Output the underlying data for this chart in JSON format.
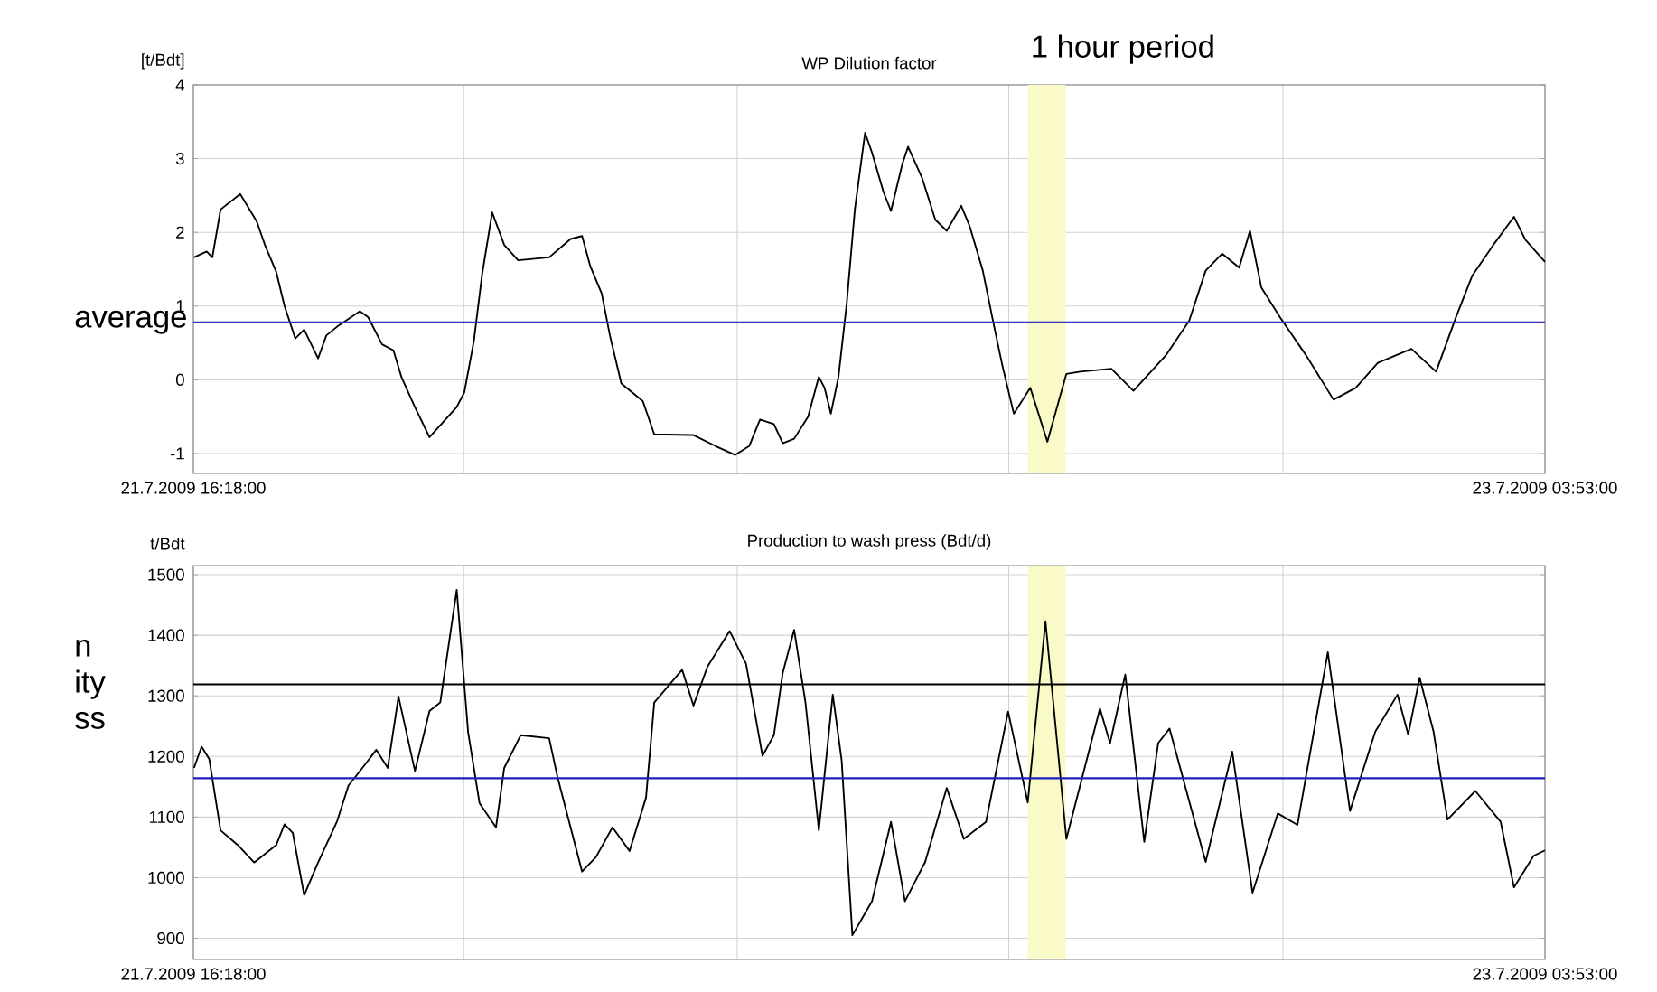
{
  "chart_data": [
    {
      "type": "line",
      "title": "WP Dilution factor",
      "ylabel": "[t/Bdt]",
      "color": "#000000",
      "x": [
        "2009-07-21T16:19",
        "2009-07-21T16:39",
        "2009-07-21T16:48",
        "2009-07-21T17:01",
        "2009-07-21T17:32",
        "2009-07-21T17:58",
        "2009-07-21T18:11",
        "2009-07-21T18:29",
        "2009-07-21T18:42",
        "2009-07-21T18:59",
        "2009-07-21T19:13",
        "2009-07-21T19:35",
        "2009-07-21T19:48",
        "2009-07-21T20:05",
        "2009-07-21T20:41",
        "2009-07-21T20:54",
        "2009-07-21T21:16",
        "2009-07-21T21:34",
        "2009-07-21T21:47",
        "2009-07-21T22:08",
        "2009-07-21T22:31",
        "2009-07-21T22:52",
        "2009-07-21T23:14",
        "2009-07-21T23:26",
        "2009-07-21T23:41",
        "2009-07-21T23:54",
        "2009-07-22T00:10",
        "2009-07-22T00:29",
        "2009-07-22T00:51",
        "2009-07-22T01:40",
        "2009-07-22T02:14",
        "2009-07-22T02:32",
        "2009-07-22T02:45",
        "2009-07-22T03:03",
        "2009-07-22T03:16",
        "2009-07-22T03:34",
        "2009-07-22T04:08",
        "2009-07-22T04:26",
        "2009-07-22T05:28",
        "2009-07-22T06:03",
        "2009-07-22T06:34",
        "2009-07-22T06:56",
        "2009-07-22T07:13",
        "2009-07-22T07:35",
        "2009-07-22T07:49",
        "2009-07-22T08:07",
        "2009-07-22T08:29",
        "2009-07-22T08:46",
        "2009-07-22T08:55",
        "2009-07-22T09:05",
        "2009-07-22T09:17",
        "2009-07-22T09:30",
        "2009-07-22T09:43",
        "2009-07-22T09:59",
        "2009-07-22T10:10",
        "2009-07-22T10:28",
        "2009-07-22T10:40",
        "2009-07-22T10:58",
        "2009-07-22T11:07",
        "2009-07-22T11:29",
        "2009-07-22T11:50",
        "2009-07-22T12:08",
        "2009-07-22T12:31",
        "2009-07-22T12:44",
        "2009-07-22T13:05",
        "2009-07-22T13:23",
        "2009-07-22T13:36",
        "2009-07-22T13:54",
        "2009-07-22T14:20",
        "2009-07-22T14:47",
        "2009-07-22T15:17",
        "2009-07-22T15:39",
        "2009-07-22T16:28",
        "2009-07-22T17:03",
        "2009-07-22T17:55",
        "2009-07-22T18:31",
        "2009-07-22T18:57",
        "2009-07-22T19:23",
        "2009-07-22T19:50",
        "2009-07-22T20:07",
        "2009-07-22T20:25",
        "2009-07-22T20:55",
        "2009-07-22T21:35",
        "2009-07-22T22:19",
        "2009-07-22T22:54",
        "2009-07-22T23:29",
        "2009-07-23T00:22",
        "2009-07-23T01:01",
        "2009-07-23T01:32",
        "2009-07-23T01:58",
        "2009-07-23T02:34",
        "2009-07-23T03:04",
        "2009-07-23T03:22",
        "2009-07-23T03:53"
      ],
      "values": [
        1.66,
        1.74,
        1.66,
        2.31,
        2.52,
        2.15,
        1.83,
        1.46,
        1.0,
        0.56,
        0.68,
        0.29,
        0.6,
        0.72,
        0.93,
        0.85,
        0.48,
        0.4,
        0.03,
        -0.37,
        -0.78,
        -0.58,
        -0.37,
        -0.17,
        0.52,
        1.42,
        2.27,
        1.83,
        1.62,
        1.66,
        1.91,
        1.95,
        1.54,
        1.17,
        0.6,
        -0.05,
        -0.29,
        -0.74,
        -0.75,
        -0.9,
        -1.02,
        -0.9,
        -0.54,
        -0.6,
        -0.86,
        -0.8,
        -0.5,
        0.04,
        -0.11,
        -0.46,
        0.04,
        1.03,
        2.32,
        3.35,
        3.08,
        2.55,
        2.29,
        2.93,
        3.16,
        2.74,
        2.17,
        2.02,
        2.36,
        2.09,
        1.48,
        0.72,
        0.19,
        -0.46,
        -0.11,
        -0.84,
        0.08,
        0.11,
        0.15,
        -0.15,
        0.34,
        0.8,
        1.48,
        1.71,
        1.52,
        2.02,
        1.25,
        0.84,
        0.34,
        -0.27,
        -0.11,
        0.23,
        0.42,
        0.11,
        0.84,
        1.41,
        1.86,
        2.21,
        1.9,
        1.6
      ],
      "xlim": [
        "2009-07-21T16:18",
        "2009-07-23T03:53"
      ],
      "xticks": [
        {
          "value": "2009-07-21T16:18",
          "label": "21.7.2009 16:18:00"
        },
        {
          "value": "2009-07-21T23:25",
          "label": null
        },
        {
          "value": "2009-07-22T06:37",
          "label": null
        },
        {
          "value": "2009-07-22T13:46",
          "label": null
        },
        {
          "value": "2009-07-22T20:59",
          "label": null
        },
        {
          "value": "2009-07-23T03:53",
          "label": "23.7.2009 03:53:00"
        }
      ],
      "ylim": [
        -1.27,
        4
      ],
      "yticks": [
        -1,
        0,
        1,
        2,
        3,
        4
      ],
      "grid": true,
      "ref_lines": [
        {
          "axis": "y",
          "value": 0.78,
          "label": "average",
          "color": "#3333bb"
        }
      ],
      "bands": [
        {
          "axis": "x",
          "from": "2009-07-22T14:16",
          "to": "2009-07-22T15:16",
          "label": "1 hour period",
          "color": "#fafac8"
        }
      ]
    },
    {
      "type": "line",
      "title": "Production to wash press (Bdt/d)",
      "ylabel": "t/Bdt",
      "color": "#000000",
      "x": [
        "2009-07-21T16:19",
        "2009-07-21T16:31",
        "2009-07-21T16:43",
        "2009-07-21T17:01",
        "2009-07-21T17:28",
        "2009-07-21T17:54",
        "2009-07-21T18:29",
        "2009-07-21T18:42",
        "2009-07-21T18:55",
        "2009-07-21T19:13",
        "2009-07-21T19:35",
        "2009-07-21T20:05",
        "2009-07-21T20:23",
        "2009-07-21T20:45",
        "2009-07-21T21:07",
        "2009-07-21T21:25",
        "2009-07-21T21:42",
        "2009-07-21T22:08",
        "2009-07-21T22:31",
        "2009-07-21T22:48",
        "2009-07-21T23:14",
        "2009-07-21T23:32",
        "2009-07-21T23:50",
        "2009-07-22T00:16",
        "2009-07-22T00:29",
        "2009-07-22T00:55",
        "2009-07-22T01:40",
        "2009-07-22T01:53",
        "2009-07-22T02:32",
        "2009-07-22T02:54",
        "2009-07-22T03:20",
        "2009-07-22T03:47",
        "2009-07-22T04:13",
        "2009-07-22T04:26",
        "2009-07-22T05:10",
        "2009-07-22T05:28",
        "2009-07-22T05:50",
        "2009-07-22T06:25",
        "2009-07-22T06:51",
        "2009-07-22T07:17",
        "2009-07-22T07:35",
        "2009-07-22T07:49",
        "2009-07-22T08:07",
        "2009-07-22T08:25",
        "2009-07-22T08:46",
        "2009-07-22T09:08",
        "2009-07-22T09:22",
        "2009-07-22T09:39",
        "2009-07-22T10:10",
        "2009-07-22T10:40",
        "2009-07-22T11:02",
        "2009-07-22T11:34",
        "2009-07-22T12:08",
        "2009-07-22T12:35",
        "2009-07-22T13:10",
        "2009-07-22T13:45",
        "2009-07-22T14:16",
        "2009-07-22T14:44",
        "2009-07-22T15:17",
        "2009-07-22T16:10",
        "2009-07-22T16:26",
        "2009-07-22T16:50",
        "2009-07-22T17:20",
        "2009-07-22T17:42",
        "2009-07-22T18:00",
        "2009-07-22T18:57",
        "2009-07-22T19:39",
        "2009-07-22T20:11",
        "2009-07-22T20:51",
        "2009-07-22T21:22",
        "2009-07-22T22:10",
        "2009-07-22T22:45",
        "2009-07-22T23:25",
        "2009-07-23T00:00",
        "2009-07-23T00:17",
        "2009-07-23T00:35",
        "2009-07-23T00:57",
        "2009-07-23T01:19",
        "2009-07-23T02:03",
        "2009-07-23T02:43",
        "2009-07-23T03:04",
        "2009-07-23T03:35",
        "2009-07-23T03:53"
      ],
      "values": [
        1181,
        1216,
        1196,
        1078,
        1054,
        1025,
        1054,
        1088,
        1074,
        971,
        1025,
        1093,
        1152,
        1181,
        1211,
        1181,
        1299,
        1176,
        1275,
        1289,
        1475,
        1240,
        1123,
        1083,
        1181,
        1235,
        1230,
        1167,
        1010,
        1034,
        1083,
        1044,
        1132,
        1289,
        1343,
        1284,
        1348,
        1407,
        1353,
        1201,
        1235,
        1338,
        1409,
        1288,
        1078,
        1302,
        1194,
        905,
        961,
        1092,
        961,
        1026,
        1148,
        1064,
        1092,
        1274,
        1124,
        1423,
        1064,
        1279,
        1222,
        1335,
        1059,
        1222,
        1246,
        1026,
        1208,
        975,
        1106,
        1087,
        1372,
        1110,
        1241,
        1302,
        1236,
        1330,
        1241,
        1096,
        1143,
        1092,
        984,
        1036,
        1045
      ],
      "xlim": [
        "2009-07-21T16:18",
        "2009-07-23T03:53"
      ],
      "xticks": [
        {
          "value": "2009-07-21T16:18",
          "label": "21.7.2009 16:18:00"
        },
        {
          "value": "2009-07-21T23:25",
          "label": null
        },
        {
          "value": "2009-07-22T06:37",
          "label": null
        },
        {
          "value": "2009-07-22T13:46",
          "label": null
        },
        {
          "value": "2009-07-22T20:59",
          "label": null
        },
        {
          "value": "2009-07-23T03:53",
          "label": "23.7.2009 03:53:00"
        }
      ],
      "ylim": [
        865,
        1515
      ],
      "yticks": [
        900,
        1000,
        1100,
        1200,
        1300,
        1400,
        1500
      ],
      "grid": true,
      "ref_lines": [
        {
          "axis": "y",
          "value": 1164,
          "color": "#1f1fc0"
        },
        {
          "axis": "y",
          "value": 1319,
          "label": "n ity ss",
          "color": "#000000"
        }
      ],
      "bands": [
        {
          "axis": "x",
          "from": "2009-07-22T14:16",
          "to": "2009-07-22T15:16",
          "color": "#fafac8"
        }
      ]
    }
  ]
}
